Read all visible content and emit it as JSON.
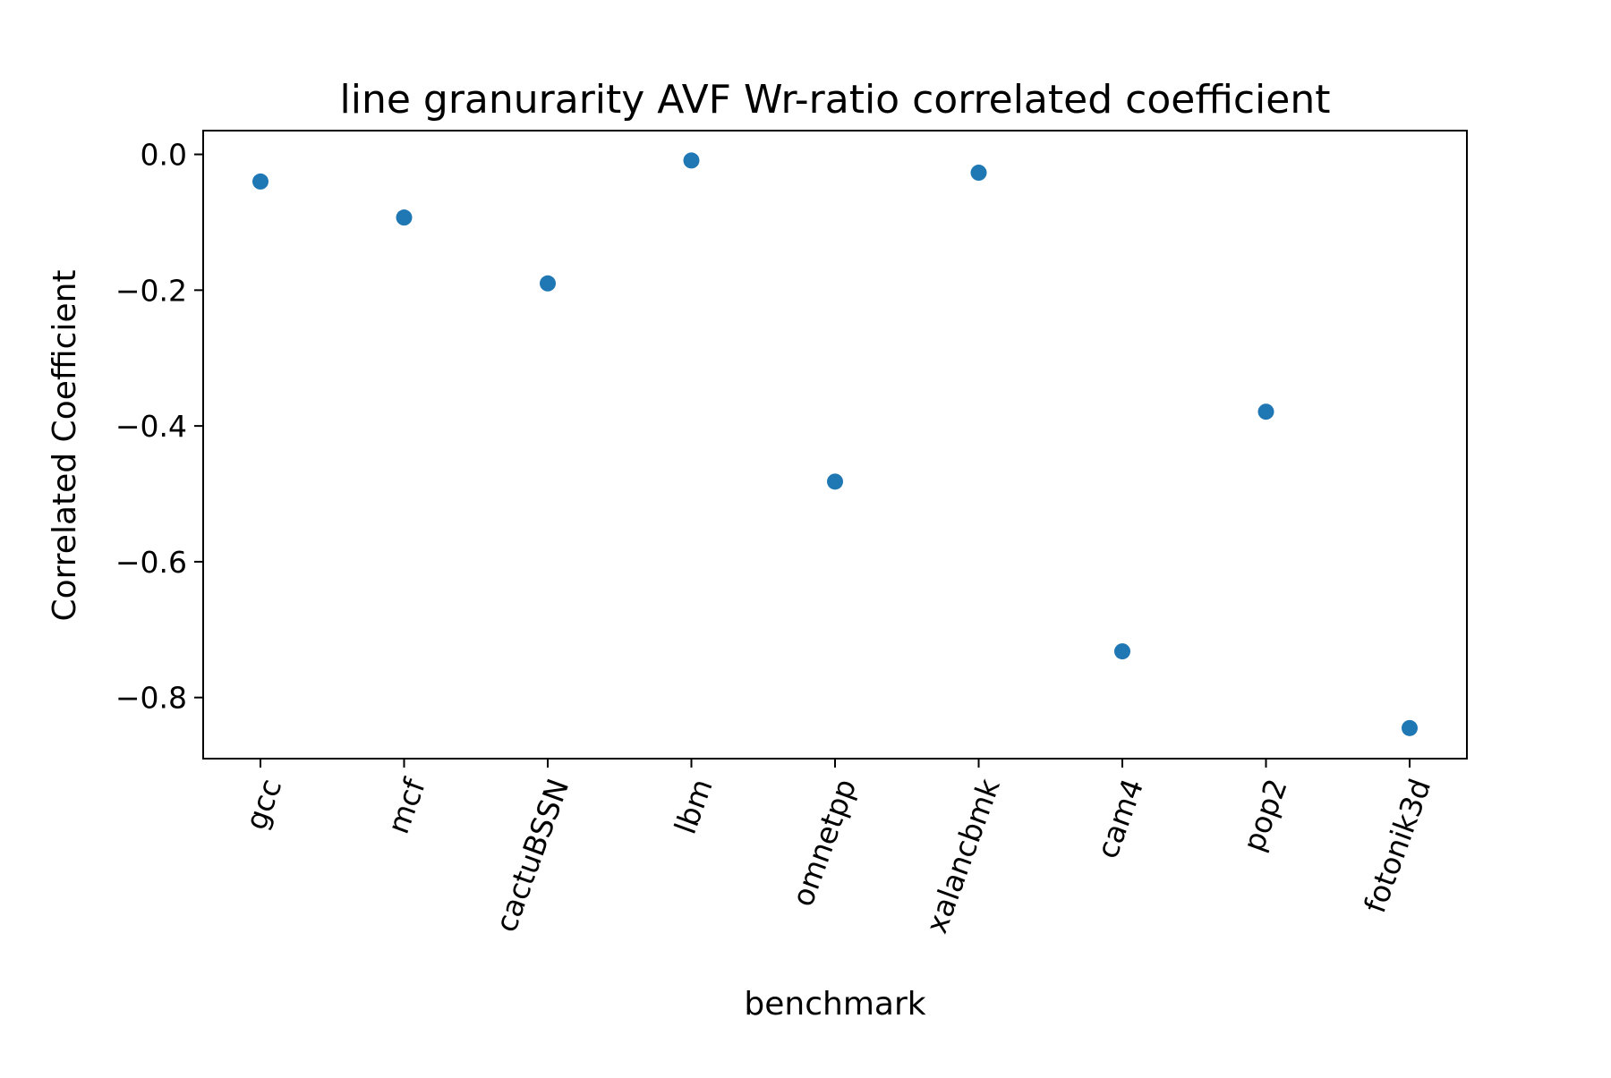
{
  "chart_data": {
    "type": "scatter",
    "title": "line granurarity AVF Wr-ratio correlated coefficient",
    "xlabel": "benchmark",
    "ylabel": "Correlated Coefficient",
    "categories": [
      "gcc",
      "mcf",
      "cactuBSSN",
      "lbm",
      "omnetpp",
      "xalancbmk",
      "cam4",
      "pop2",
      "fotonik3d"
    ],
    "values": [
      -0.04,
      -0.093,
      -0.19,
      -0.009,
      -0.482,
      -0.027,
      -0.732,
      -0.379,
      -0.845
    ],
    "ylim": [
      -0.89,
      0.035
    ],
    "yticks": [
      0.0,
      -0.2,
      -0.4,
      -0.6,
      -0.8
    ],
    "ytick_labels": [
      "0.0",
      "−0.2",
      "−0.4",
      "−0.6",
      "−0.8"
    ],
    "grid": false,
    "marker_color": "#1f77b4"
  }
}
